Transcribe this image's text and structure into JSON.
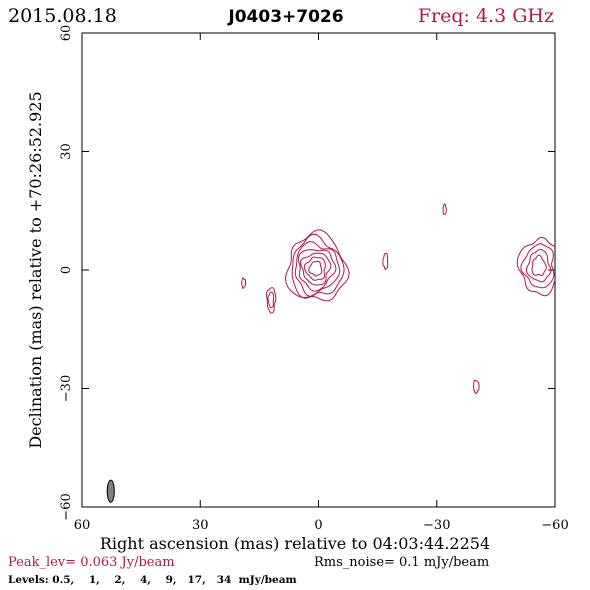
{
  "header": {
    "date": "2015.08.18",
    "source": "J0403+7026",
    "freq": "Freq: 4.3 GHz"
  },
  "colors": {
    "accent": "#b0174a",
    "ink": "#000000",
    "beam": "#808080"
  },
  "footer": {
    "peak": "Peak_lev=  0.063 Jy/beam",
    "rms": "Rms_noise=  0.1 mJy/beam",
    "levels": "Levels: 0.5,    1,    2,    4,    9,   17,   34  mJy/beam"
  },
  "chart_data": {
    "type": "contour",
    "xlabel": "Right ascension (mas) relative to 04:03:44.2254",
    "ylabel": "Declination (mas) relative to +70:26:52.925",
    "xlim": [
      60,
      -60
    ],
    "ylim": [
      -60,
      60
    ],
    "xticks": [
      60,
      30,
      0,
      -30,
      -60
    ],
    "yticks": [
      60,
      30,
      0,
      -30,
      -60
    ],
    "xtick_labels": [
      "60",
      "30",
      "0",
      "−30",
      "−60"
    ],
    "ytick_labels": [
      "60",
      "30",
      "0",
      "−30",
      "−60"
    ],
    "levels_mJy": [
      0.5,
      1,
      2,
      4,
      9,
      17,
      34
    ],
    "peak_Jy_per_beam": 0.063,
    "rms_mJy_per_beam": 0.1,
    "components": [
      {
        "name": "core",
        "x": 0.5,
        "y": 0.5,
        "rx_outer": 7.5,
        "ry_outer": 8.5,
        "levels": 7
      },
      {
        "name": "knot-east-1",
        "x": 19,
        "y": -3.3,
        "rx_outer": 0.5,
        "ry_outer": 1.2,
        "levels": 1
      },
      {
        "name": "knot-east-2",
        "x": 12,
        "y": -7.5,
        "rx_outer": 1.1,
        "ry_outer": 3.2,
        "levels": 2
      },
      {
        "name": "knot-west-1",
        "x": -17,
        "y": 2.2,
        "rx_outer": 0.6,
        "ry_outer": 2.0,
        "levels": 1
      },
      {
        "name": "knot-west-2",
        "x": -32,
        "y": 15.3,
        "rx_outer": 0.4,
        "ry_outer": 1.3,
        "levels": 1
      },
      {
        "name": "knot-west-3",
        "x": -40,
        "y": -29.5,
        "rx_outer": 0.7,
        "ry_outer": 1.6,
        "levels": 1
      },
      {
        "name": "jet-edge",
        "x": -56,
        "y": 1,
        "rx_outer": 5,
        "ry_outer": 7,
        "levels": 4
      }
    ],
    "beam": {
      "x": 52.7,
      "y": -56,
      "major_mas": 5.6,
      "minor_mas": 1.8,
      "pa_deg": 0
    }
  }
}
